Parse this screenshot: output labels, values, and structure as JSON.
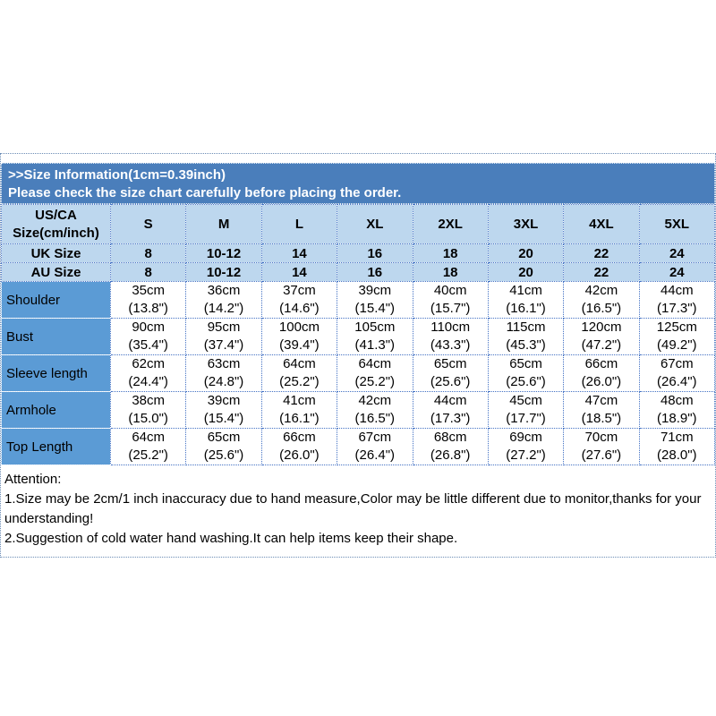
{
  "banner": {
    "title": ">>Size Information(1cm=0.39inch)",
    "subtitle": "Please check the size chart carefully before placing the order."
  },
  "table": {
    "corner_label_line1": "US/CA",
    "corner_label_line2": "Size(cm/inch)",
    "size_labels": [
      "S",
      "M",
      "L",
      "XL",
      "2XL",
      "3XL",
      "4XL",
      "5XL"
    ],
    "conversion_rows": [
      {
        "label": "UK Size",
        "values": [
          "8",
          "10-12",
          "14",
          "16",
          "18",
          "20",
          "22",
          "24"
        ]
      },
      {
        "label": "AU Size",
        "values": [
          "8",
          "10-12",
          "14",
          "16",
          "18",
          "20",
          "22",
          "24"
        ]
      }
    ],
    "measurement_rows": [
      {
        "label": "Shoulder",
        "values": [
          {
            "cm": "35cm",
            "inch": "(13.8\")"
          },
          {
            "cm": "36cm",
            "inch": "(14.2\")"
          },
          {
            "cm": "37cm",
            "inch": "(14.6\")"
          },
          {
            "cm": "39cm",
            "inch": "(15.4\")"
          },
          {
            "cm": "40cm",
            "inch": "(15.7\")"
          },
          {
            "cm": "41cm",
            "inch": "(16.1\")"
          },
          {
            "cm": "42cm",
            "inch": "(16.5\")"
          },
          {
            "cm": "44cm",
            "inch": "(17.3\")"
          }
        ]
      },
      {
        "label": "Bust",
        "values": [
          {
            "cm": "90cm",
            "inch": "(35.4\")"
          },
          {
            "cm": "95cm",
            "inch": "(37.4\")"
          },
          {
            "cm": "100cm",
            "inch": "(39.4\")"
          },
          {
            "cm": "105cm",
            "inch": "(41.3\")"
          },
          {
            "cm": "110cm",
            "inch": "(43.3\")"
          },
          {
            "cm": "115cm",
            "inch": "(45.3\")"
          },
          {
            "cm": "120cm",
            "inch": "(47.2\")"
          },
          {
            "cm": "125cm",
            "inch": "(49.2\")"
          }
        ]
      },
      {
        "label": "Sleeve length",
        "values": [
          {
            "cm": "62cm",
            "inch": "(24.4\")"
          },
          {
            "cm": "63cm",
            "inch": "(24.8\")"
          },
          {
            "cm": "64cm",
            "inch": "(25.2\")"
          },
          {
            "cm": "64cm",
            "inch": "(25.2\")"
          },
          {
            "cm": "65cm",
            "inch": "(25.6\")"
          },
          {
            "cm": "65cm",
            "inch": "(25.6\")"
          },
          {
            "cm": "66cm",
            "inch": "(26.0\")"
          },
          {
            "cm": "67cm",
            "inch": "(26.4\")"
          }
        ]
      },
      {
        "label": "Armhole",
        "values": [
          {
            "cm": "38cm",
            "inch": "(15.0\")"
          },
          {
            "cm": "39cm",
            "inch": "(15.4\")"
          },
          {
            "cm": "41cm",
            "inch": "(16.1\")"
          },
          {
            "cm": "42cm",
            "inch": "(16.5\")"
          },
          {
            "cm": "44cm",
            "inch": "(17.3\")"
          },
          {
            "cm": "45cm",
            "inch": "(17.7\")"
          },
          {
            "cm": "47cm",
            "inch": "(18.5\")"
          },
          {
            "cm": "48cm",
            "inch": "(18.9\")"
          }
        ]
      },
      {
        "label": "Top Length",
        "values": [
          {
            "cm": "64cm",
            "inch": "(25.2\")"
          },
          {
            "cm": "65cm",
            "inch": "(25.6\")"
          },
          {
            "cm": "66cm",
            "inch": "(26.0\")"
          },
          {
            "cm": "67cm",
            "inch": "(26.4\")"
          },
          {
            "cm": "68cm",
            "inch": "(26.8\")"
          },
          {
            "cm": "69cm",
            "inch": "(27.2\")"
          },
          {
            "cm": "70cm",
            "inch": "(27.6\")"
          },
          {
            "cm": "71cm",
            "inch": "(28.0\")"
          }
        ]
      }
    ]
  },
  "attention": {
    "heading": "Attention:",
    "lines": [
      "1.Size may be 2cm/1 inch inaccuracy due to hand measure,Color may be little different due to monitor,thanks for your understanding!",
      "2.Suggestion of cold water hand washing.It can help items keep their shape."
    ]
  },
  "colors": {
    "banner_bg": "#4A7EBB",
    "header_cell_bg": "#BDD7EE",
    "label_column_bg": "#5B9BD5",
    "cell_border": "#4472C4",
    "banner_text": "#FFFFFF",
    "body_text": "#000000"
  }
}
